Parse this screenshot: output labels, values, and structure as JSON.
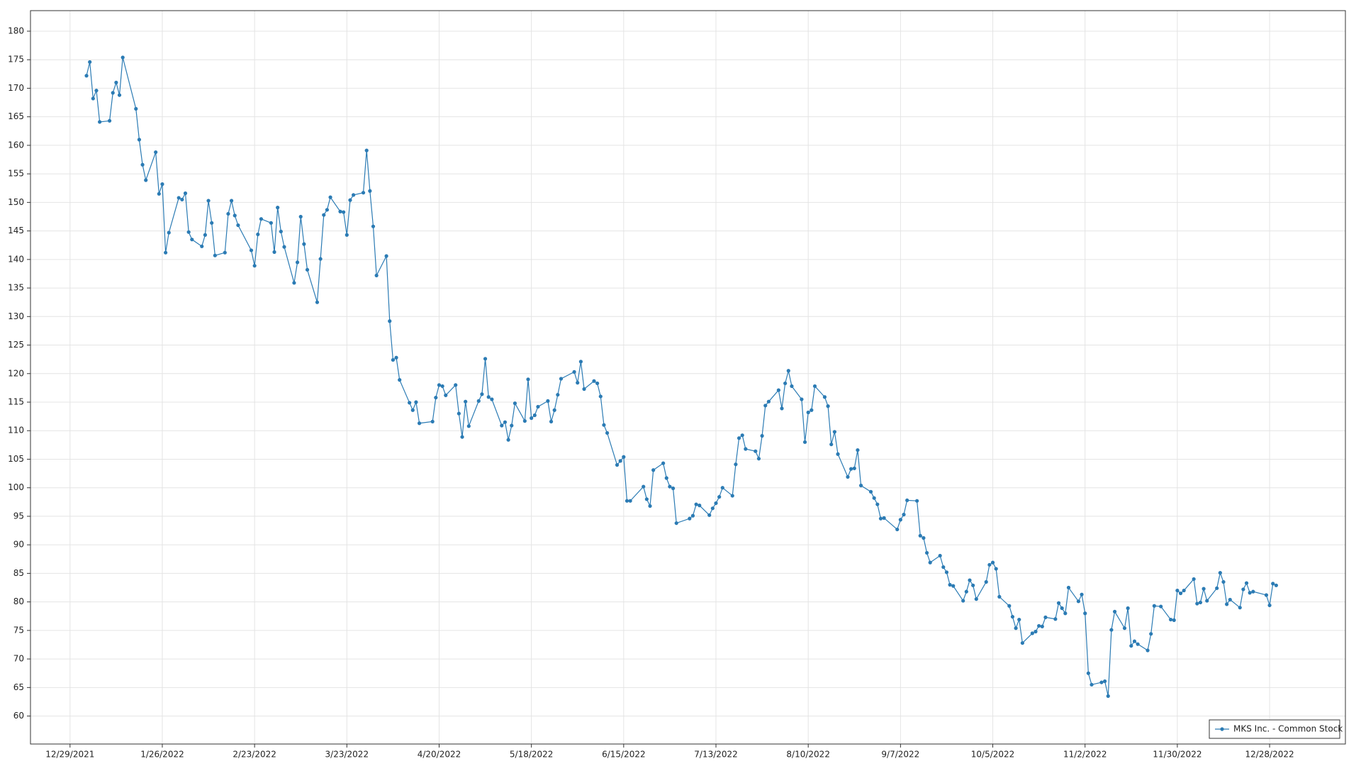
{
  "chart_data": {
    "type": "line",
    "grid": true,
    "legend": "lower right",
    "xlim": [
      "12/17/2021",
      "1/20/2023"
    ],
    "xticks": [
      "12/29/2021",
      "1/26/2022",
      "2/23/2022",
      "3/23/2022",
      "4/20/2022",
      "5/18/2022",
      "6/15/2022",
      "7/13/2022",
      "8/10/2022",
      "9/7/2022",
      "10/5/2022",
      "11/2/2022",
      "11/30/2022",
      "12/28/2022"
    ],
    "ylim": [
      55.1,
      183.6
    ],
    "yticks": [
      60,
      65,
      70,
      75,
      80,
      85,
      90,
      95,
      100,
      105,
      110,
      115,
      120,
      125,
      130,
      135,
      140,
      145,
      150,
      155,
      160,
      165,
      170,
      175,
      180
    ],
    "x": [
      "1/3/2022",
      "1/4/2022",
      "1/5/2022",
      "1/6/2022",
      "1/7/2022",
      "1/10/2022",
      "1/11/2022",
      "1/12/2022",
      "1/13/2022",
      "1/14/2022",
      "1/18/2022",
      "1/19/2022",
      "1/20/2022",
      "1/21/2022",
      "1/24/2022",
      "1/25/2022",
      "1/26/2022",
      "1/27/2022",
      "1/28/2022",
      "1/31/2022",
      "2/1/2022",
      "2/2/2022",
      "2/3/2022",
      "2/4/2022",
      "2/7/2022",
      "2/8/2022",
      "2/9/2022",
      "2/10/2022",
      "2/11/2022",
      "2/14/2022",
      "2/15/2022",
      "2/16/2022",
      "2/17/2022",
      "2/18/2022",
      "2/22/2022",
      "2/23/2022",
      "2/24/2022",
      "2/25/2022",
      "2/28/2022",
      "3/1/2022",
      "3/2/2022",
      "3/3/2022",
      "3/4/2022",
      "3/7/2022",
      "3/8/2022",
      "3/9/2022",
      "3/10/2022",
      "3/11/2022",
      "3/14/2022",
      "3/15/2022",
      "3/16/2022",
      "3/17/2022",
      "3/18/2022",
      "3/21/2022",
      "3/22/2022",
      "3/23/2022",
      "3/24/2022",
      "3/25/2022",
      "3/28/2022",
      "3/29/2022",
      "3/30/2022",
      "3/31/2022",
      "4/1/2022",
      "4/4/2022",
      "4/5/2022",
      "4/6/2022",
      "4/7/2022",
      "4/8/2022",
      "4/11/2022",
      "4/12/2022",
      "4/13/2022",
      "4/14/2022",
      "4/18/2022",
      "4/19/2022",
      "4/20/2022",
      "4/21/2022",
      "4/22/2022",
      "4/25/2022",
      "4/26/2022",
      "4/27/2022",
      "4/28/2022",
      "4/29/2022",
      "5/2/2022",
      "5/3/2022",
      "5/4/2022",
      "5/5/2022",
      "5/6/2022",
      "5/9/2022",
      "5/10/2022",
      "5/11/2022",
      "5/12/2022",
      "5/13/2022",
      "5/16/2022",
      "5/17/2022",
      "5/18/2022",
      "5/19/2022",
      "5/20/2022",
      "5/23/2022",
      "5/24/2022",
      "5/25/2022",
      "5/26/2022",
      "5/27/2022",
      "5/31/2022",
      "6/1/2022",
      "6/2/2022",
      "6/3/2022",
      "6/6/2022",
      "6/7/2022",
      "6/8/2022",
      "6/9/2022",
      "6/10/2022",
      "6/13/2022",
      "6/14/2022",
      "6/15/2022",
      "6/16/2022",
      "6/17/2022",
      "6/21/2022",
      "6/22/2022",
      "6/23/2022",
      "6/24/2022",
      "6/27/2022",
      "6/28/2022",
      "6/29/2022",
      "6/30/2022",
      "7/1/2022",
      "7/5/2022",
      "7/6/2022",
      "7/7/2022",
      "7/8/2022",
      "7/11/2022",
      "7/12/2022",
      "7/13/2022",
      "7/14/2022",
      "7/15/2022",
      "7/18/2022",
      "7/19/2022",
      "7/20/2022",
      "7/21/2022",
      "7/22/2022",
      "7/25/2022",
      "7/26/2022",
      "7/27/2022",
      "7/28/2022",
      "7/29/2022",
      "8/1/2022",
      "8/2/2022",
      "8/3/2022",
      "8/4/2022",
      "8/5/2022",
      "8/8/2022",
      "8/9/2022",
      "8/10/2022",
      "8/11/2022",
      "8/12/2022",
      "8/15/2022",
      "8/16/2022",
      "8/17/2022",
      "8/18/2022",
      "8/19/2022",
      "8/22/2022",
      "8/23/2022",
      "8/24/2022",
      "8/25/2022",
      "8/26/2022",
      "8/29/2022",
      "8/30/2022",
      "8/31/2022",
      "9/1/2022",
      "9/2/2022",
      "9/6/2022",
      "9/7/2022",
      "9/8/2022",
      "9/9/2022",
      "9/12/2022",
      "9/13/2022",
      "9/14/2022",
      "9/15/2022",
      "9/16/2022",
      "9/19/2022",
      "9/20/2022",
      "9/21/2022",
      "9/22/2022",
      "9/23/2022",
      "9/26/2022",
      "9/27/2022",
      "9/28/2022",
      "9/29/2022",
      "9/30/2022",
      "10/3/2022",
      "10/4/2022",
      "10/5/2022",
      "10/6/2022",
      "10/7/2022",
      "10/10/2022",
      "10/11/2022",
      "10/12/2022",
      "10/13/2022",
      "10/14/2022",
      "10/17/2022",
      "10/18/2022",
      "10/19/2022",
      "10/20/2022",
      "10/21/2022",
      "10/24/2022",
      "10/25/2022",
      "10/26/2022",
      "10/27/2022",
      "10/28/2022",
      "10/31/2022",
      "11/1/2022",
      "11/2/2022",
      "11/3/2022",
      "11/4/2022",
      "11/7/2022",
      "11/8/2022",
      "11/9/2022",
      "11/10/2022",
      "11/11/2022",
      "11/14/2022",
      "11/15/2022",
      "11/16/2022",
      "11/17/2022",
      "11/18/2022",
      "11/21/2022",
      "11/22/2022",
      "11/23/2022",
      "11/25/2022",
      "11/28/2022",
      "11/29/2022",
      "11/30/2022",
      "12/1/2022",
      "12/2/2022",
      "12/5/2022",
      "12/6/2022",
      "12/7/2022",
      "12/8/2022",
      "12/9/2022",
      "12/12/2022",
      "12/13/2022",
      "12/14/2022",
      "12/15/2022",
      "12/16/2022",
      "12/19/2022",
      "12/20/2022",
      "12/21/2022",
      "12/22/2022",
      "12/23/2022",
      "12/27/2022",
      "12/28/2022",
      "12/29/2022",
      "12/30/2022"
    ],
    "series": [
      {
        "name": "MKS Inc. - Common Stock",
        "color": "#2b7bb4",
        "values": [
          172.2,
          174.6,
          168.2,
          169.6,
          164.1,
          164.3,
          169.2,
          171.0,
          168.8,
          175.4,
          166.4,
          161.0,
          156.6,
          153.9,
          158.8,
          151.5,
          153.2,
          141.2,
          144.7,
          150.8,
          150.5,
          151.6,
          144.8,
          143.5,
          142.3,
          144.3,
          150.3,
          146.4,
          140.7,
          141.2,
          148.0,
          150.3,
          147.7,
          146.0,
          141.6,
          138.9,
          144.4,
          147.1,
          146.4,
          141.3,
          149.1,
          144.9,
          142.2,
          135.9,
          139.5,
          147.5,
          142.7,
          138.2,
          132.5,
          140.1,
          147.8,
          148.7,
          150.9,
          148.4,
          148.3,
          144.3,
          150.4,
          151.3,
          151.7,
          159.1,
          152.0,
          145.8,
          137.2,
          140.6,
          129.2,
          122.4,
          122.8,
          118.9,
          114.9,
          113.6,
          115.0,
          111.3,
          111.6,
          115.8,
          118.0,
          117.8,
          116.2,
          118.0,
          113.0,
          108.9,
          115.1,
          110.8,
          115.2,
          116.4,
          122.6,
          115.9,
          115.5,
          110.9,
          111.5,
          108.4,
          110.9,
          114.8,
          111.7,
          119.0,
          112.2,
          112.7,
          114.2,
          115.2,
          111.6,
          113.6,
          116.3,
          119.1,
          120.3,
          118.4,
          122.1,
          117.3,
          118.7,
          118.3,
          116.0,
          111.0,
          109.6,
          104.0,
          104.7,
          105.4,
          97.7,
          97.7,
          100.2,
          98.0,
          96.8,
          103.1,
          104.3,
          101.7,
          100.2,
          99.9,
          93.8,
          94.6,
          95.1,
          97.1,
          96.9,
          95.2,
          96.4,
          97.3,
          98.4,
          100.0,
          98.6,
          104.1,
          108.7,
          109.2,
          106.8,
          106.4,
          105.1,
          109.1,
          114.4,
          115.1,
          117.1,
          113.9,
          118.3,
          120.5,
          117.8,
          115.5,
          108.0,
          113.2,
          113.6,
          117.8,
          115.9,
          114.3,
          107.6,
          109.8,
          105.9,
          101.9,
          103.3,
          103.4,
          106.6,
          100.4,
          99.3,
          98.2,
          97.1,
          94.6,
          94.7,
          92.7,
          94.4,
          95.3,
          97.8,
          97.7,
          91.6,
          91.2,
          88.6,
          86.9,
          88.1,
          86.1,
          85.2,
          83.0,
          82.8,
          80.2,
          81.8,
          83.8,
          82.9,
          80.5,
          83.5,
          86.5,
          86.9,
          85.8,
          80.9,
          79.3,
          77.4,
          75.4,
          76.9,
          72.8,
          74.5,
          74.8,
          75.8,
          75.7,
          77.3,
          77.0,
          79.8,
          78.9,
          78.0,
          82.5,
          80.1,
          81.3,
          78.0,
          67.5,
          65.5,
          65.9,
          66.1,
          63.5,
          75.1,
          78.3,
          75.4,
          78.9,
          72.3,
          73.1,
          72.6,
          71.5,
          74.4,
          79.3,
          79.2,
          76.9,
          76.8,
          82.0,
          81.5,
          82.0,
          84.0,
          79.7,
          79.9,
          82.3,
          80.2,
          82.4,
          85.1,
          83.5,
          79.6,
          80.4,
          79.0,
          82.2,
          83.3,
          81.6,
          81.8,
          81.2,
          79.4,
          83.2,
          82.9
        ]
      }
    ]
  }
}
